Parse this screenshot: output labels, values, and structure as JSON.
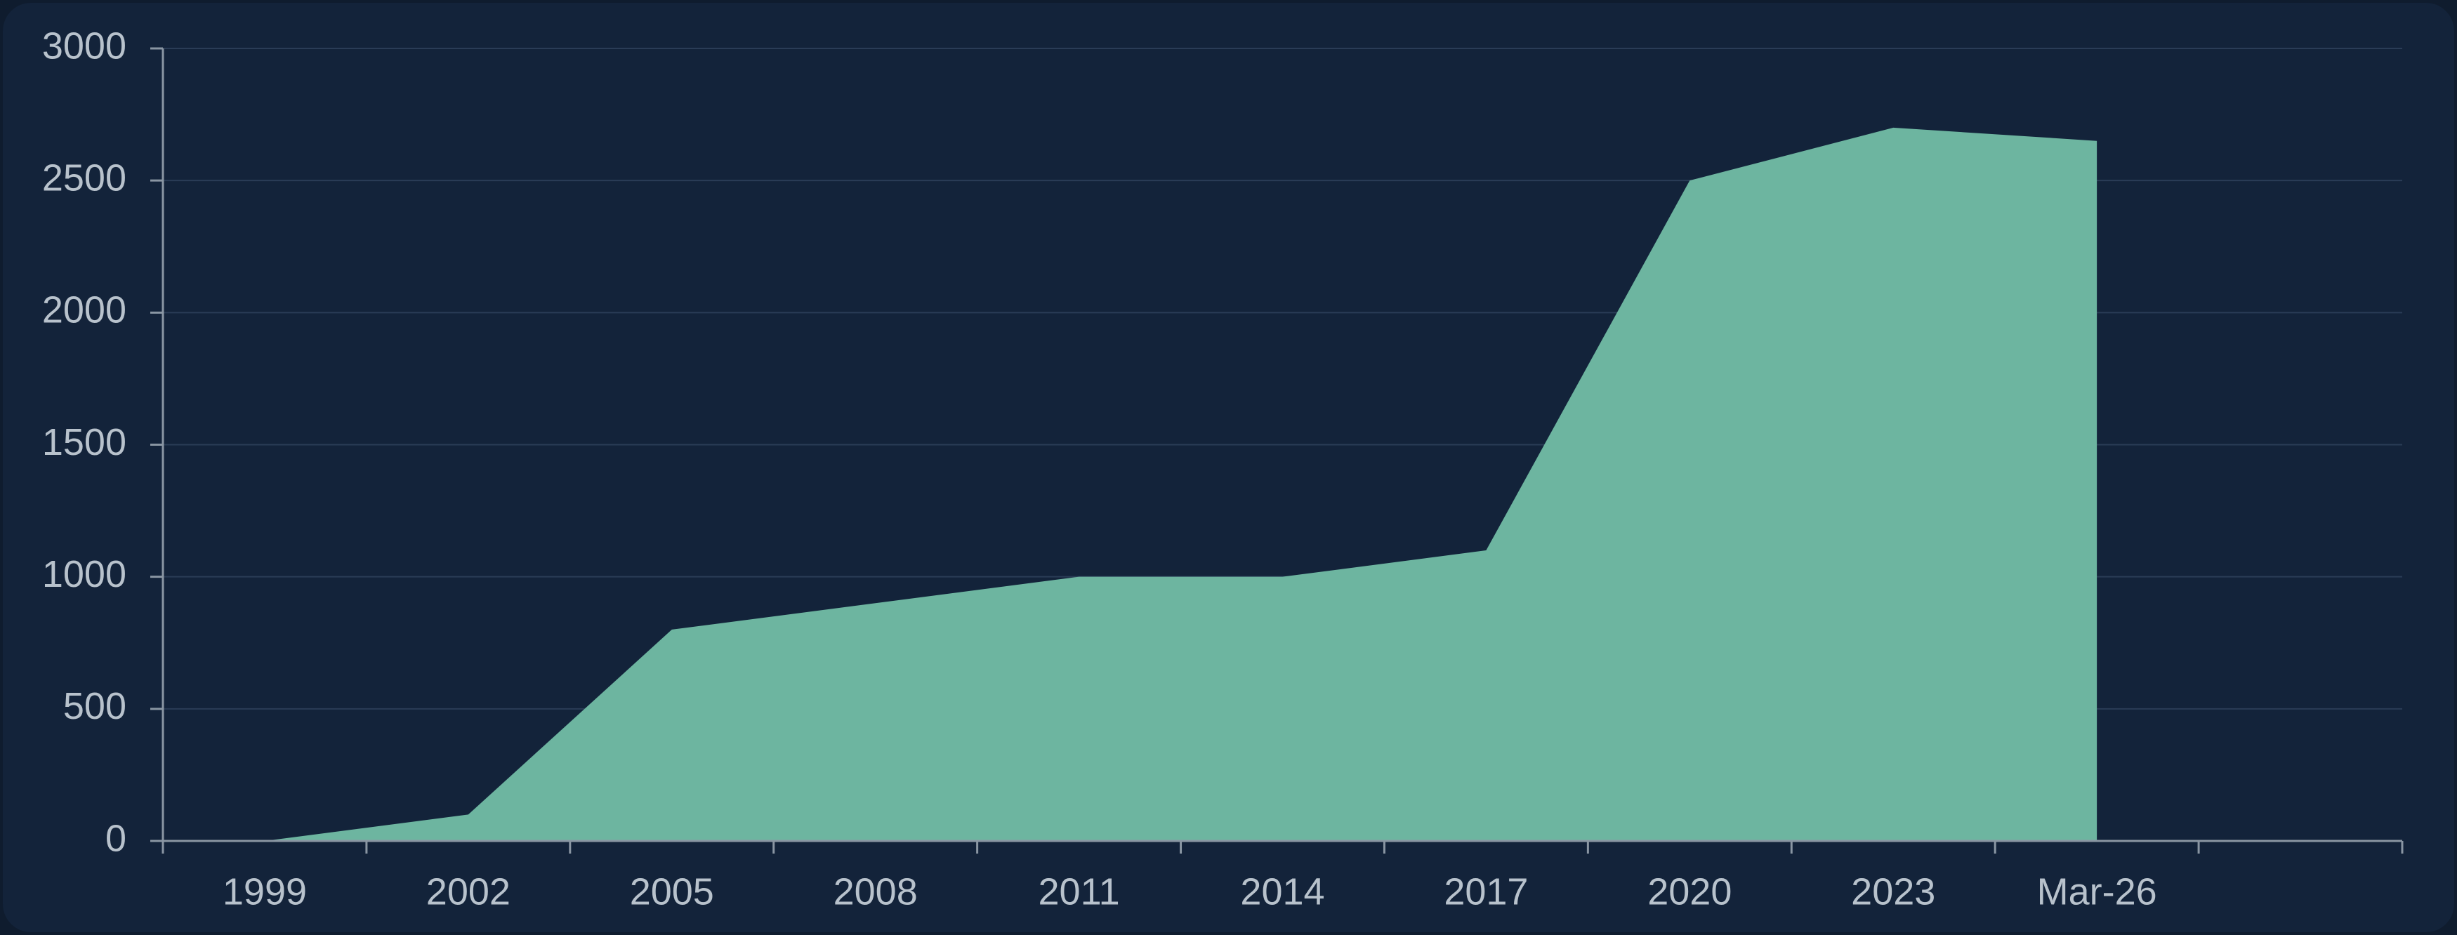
{
  "chart_data": {
    "type": "area",
    "categories": [
      "1999",
      "2002",
      "2005",
      "2008",
      "2011",
      "2014",
      "2017",
      "2020",
      "2023",
      "Mar-26"
    ],
    "values": [
      0,
      100,
      800,
      900,
      1000,
      1000,
      1100,
      2500,
      2700,
      2650
    ],
    "color": "#6db5a0",
    "ylim": [
      0,
      3000
    ],
    "yticks": [
      0,
      500,
      1000,
      1500,
      2000,
      2500,
      3000
    ],
    "grid": true
  }
}
